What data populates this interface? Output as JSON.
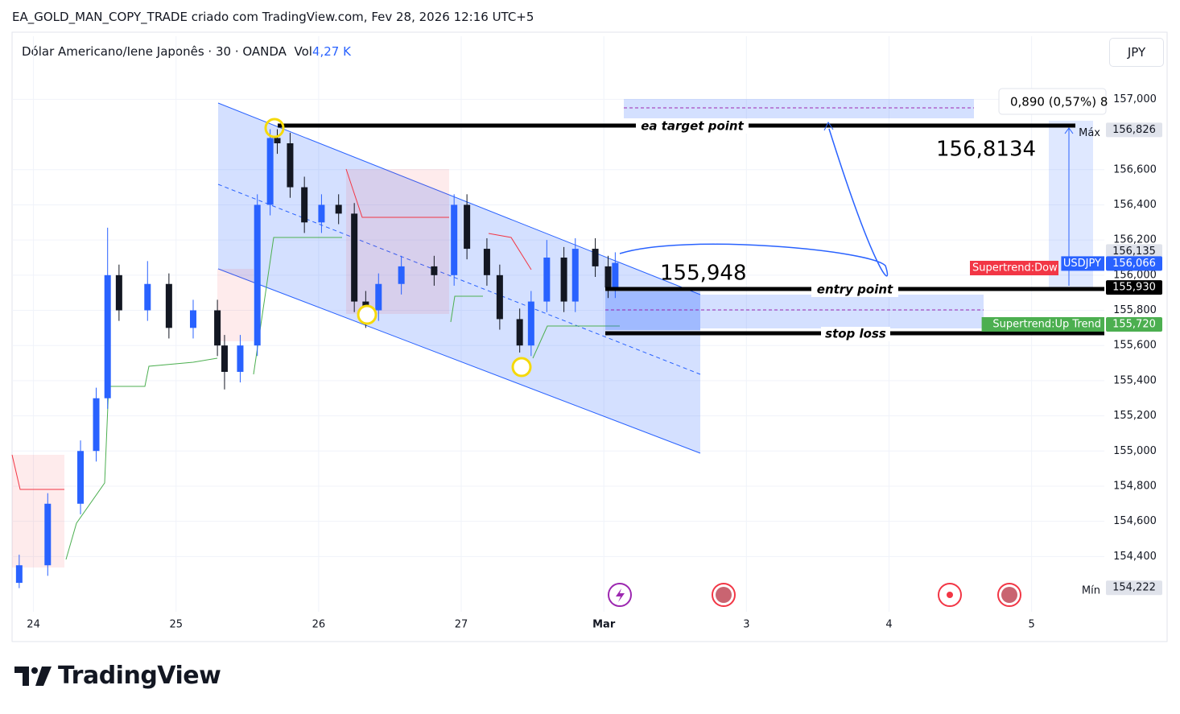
{
  "header": {
    "title": "EA_GOLD_MAN_COPY_TRADE criado com TradingView.com, Fev 28, 2026 12:16 UTC+5",
    "symbol": "Dólar Americano/Iene Japonês · 30 · OANDA",
    "vol_label": "Vol",
    "vol_value": "4,27 K",
    "currency": "JPY"
  },
  "footer": {
    "brand": "TradingView"
  },
  "annotations": {
    "target": "ea target point",
    "entry": "entry point",
    "stop": "stop loss",
    "entry_price": "155,948",
    "target_price": "156,8134",
    "measure": "0,890 (0,57%) 8",
    "supertrend_down": "Supertrend:Dow"
  },
  "chart_data": {
    "type": "candlestick",
    "up_color": "#2962ff",
    "down_color": "#131722",
    "grid": true,
    "x": [
      -0.1,
      0.1,
      0.33,
      0.44,
      0.52,
      0.6,
      0.8,
      0.95,
      1.12,
      1.29,
      1.34,
      1.45,
      1.57,
      1.66,
      1.71,
      1.8,
      1.9,
      2.02,
      2.14,
      2.25,
      2.33,
      2.42,
      2.58,
      2.81,
      2.95,
      3.04,
      3.18,
      3.27,
      3.41,
      3.49,
      3.6,
      3.72,
      3.8,
      3.94,
      4.03,
      4.08
    ],
    "open": [
      154.25,
      154.35,
      154.7,
      155.0,
      155.3,
      156.0,
      155.8,
      155.95,
      155.7,
      155.8,
      155.6,
      155.45,
      155.6,
      156.4,
      156.78,
      156.75,
      156.5,
      156.3,
      156.4,
      156.35,
      155.85,
      155.8,
      155.95,
      156.05,
      156.0,
      156.4,
      156.15,
      156.0,
      155.75,
      155.6,
      155.85,
      156.1,
      155.85,
      156.15,
      156.05,
      155.93
    ],
    "high": [
      154.41,
      154.76,
      155.06,
      155.36,
      156.27,
      156.06,
      156.08,
      156.01,
      155.86,
      155.86,
      155.66,
      155.66,
      156.46,
      156.83,
      156.83,
      156.81,
      156.56,
      156.46,
      156.46,
      156.41,
      155.91,
      156.01,
      156.11,
      156.11,
      156.46,
      156.46,
      156.21,
      156.06,
      155.81,
      155.91,
      156.2,
      156.16,
      156.21,
      156.21,
      156.11,
      156.13
    ],
    "low": [
      154.22,
      154.29,
      154.64,
      154.94,
      155.24,
      155.74,
      155.74,
      155.64,
      155.64,
      155.54,
      155.35,
      155.39,
      155.54,
      156.34,
      156.69,
      156.44,
      156.24,
      156.24,
      156.29,
      155.79,
      155.7,
      155.74,
      155.89,
      155.94,
      155.94,
      156.09,
      155.94,
      155.69,
      155.56,
      155.54,
      155.79,
      155.79,
      155.79,
      155.99,
      155.87,
      155.87
    ],
    "close": [
      154.35,
      154.7,
      155.0,
      155.3,
      156.0,
      155.8,
      155.95,
      155.7,
      155.8,
      155.6,
      155.45,
      155.6,
      156.4,
      156.78,
      156.75,
      156.5,
      156.3,
      156.4,
      156.35,
      155.85,
      155.8,
      155.95,
      156.05,
      156.0,
      156.4,
      156.15,
      156.0,
      155.75,
      155.6,
      155.85,
      156.1,
      155.85,
      156.15,
      156.05,
      155.93,
      156.07
    ],
    "xlim": [
      -0.15,
      7.51
    ],
    "xticks": [
      {
        "value": 0,
        "label": "24"
      },
      {
        "value": 1,
        "label": "25"
      },
      {
        "value": 2,
        "label": "26"
      },
      {
        "value": 3,
        "label": "27"
      },
      {
        "value": 4,
        "label": "Mar"
      },
      {
        "value": 5,
        "label": "3"
      },
      {
        "value": 6,
        "label": "4"
      },
      {
        "value": 7,
        "label": "5"
      }
    ],
    "ylim": [
      154.2,
      157.13
    ],
    "yticks": [
      {
        "value": 154.4,
        "label": "154,400"
      },
      {
        "value": 154.6,
        "label": "154,600"
      },
      {
        "value": 154.8,
        "label": "154,800"
      },
      {
        "value": 155.0,
        "label": "155,000"
      },
      {
        "value": 155.2,
        "label": "155,200"
      },
      {
        "value": 155.4,
        "label": "155,400"
      },
      {
        "value": 155.6,
        "label": "155,600"
      },
      {
        "value": 155.8,
        "label": "155,800"
      },
      {
        "value": 156.0,
        "label": "156,000"
      },
      {
        "value": 156.2,
        "label": "156,200"
      },
      {
        "value": 156.4,
        "label": "156,400"
      },
      {
        "value": 156.6,
        "label": "156,600"
      },
      {
        "value": 157.0,
        "label": "157,000"
      }
    ],
    "price_tags": [
      {
        "value": 156.826,
        "label": "156,826",
        "note": "Máx",
        "color": "#e0e3eb",
        "text_color": "#131722"
      },
      {
        "value": 156.135,
        "label": "156,135",
        "color": "#e0e3eb",
        "text_color": "#131722"
      },
      {
        "value": 156.066,
        "label": "156,066",
        "note": "USDJPY",
        "note_color": "#2962ff",
        "color": "#2962ff",
        "text_color": "#ffffff"
      },
      {
        "value": 155.93,
        "label": "155,930",
        "color": "#000000",
        "text_color": "#ffffff"
      },
      {
        "value": 155.72,
        "label": "155,720",
        "note": "Supertrend:Up Trend",
        "note_color": "#4caf50",
        "color": "#4caf50",
        "text_color": "#ffffff"
      },
      {
        "value": 154.222,
        "label": "154,222",
        "note": "Mín",
        "color": "#e0e3eb",
        "text_color": "#131722"
      }
    ]
  }
}
